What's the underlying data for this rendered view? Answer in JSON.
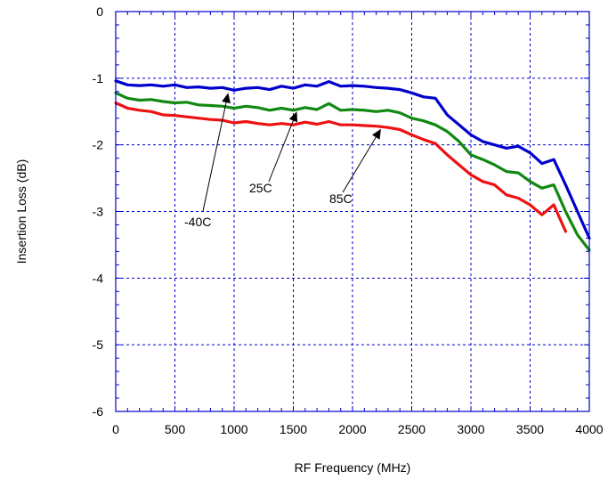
{
  "chart_data": {
    "type": "line",
    "xlabel": "RF Frequency (MHz)",
    "ylabel": "Insertion Loss (dB)",
    "xlim": [
      0,
      4000
    ],
    "ylim": [
      -6,
      0
    ],
    "xticks": [
      "0",
      "500",
      "1000",
      "1500",
      "2000",
      "2500",
      "3000",
      "3500",
      "4000"
    ],
    "yticks": [
      "0",
      "-1",
      "-2",
      "-3",
      "-4",
      "-5",
      "-6"
    ],
    "grid": true,
    "series": [
      {
        "name": "-40C",
        "color": "#0000cc",
        "points": [
          [
            0,
            -1.04
          ],
          [
            100,
            -1.1
          ],
          [
            200,
            -1.11
          ],
          [
            300,
            -1.1
          ],
          [
            400,
            -1.12
          ],
          [
            500,
            -1.1
          ],
          [
            600,
            -1.14
          ],
          [
            700,
            -1.13
          ],
          [
            800,
            -1.15
          ],
          [
            900,
            -1.14
          ],
          [
            1000,
            -1.18
          ],
          [
            1100,
            -1.15
          ],
          [
            1200,
            -1.14
          ],
          [
            1300,
            -1.17
          ],
          [
            1400,
            -1.12
          ],
          [
            1500,
            -1.15
          ],
          [
            1600,
            -1.1
          ],
          [
            1700,
            -1.12
          ],
          [
            1800,
            -1.05
          ],
          [
            1900,
            -1.12
          ],
          [
            2000,
            -1.11
          ],
          [
            2100,
            -1.12
          ],
          [
            2200,
            -1.14
          ],
          [
            2300,
            -1.15
          ],
          [
            2400,
            -1.17
          ],
          [
            2500,
            -1.22
          ],
          [
            2600,
            -1.28
          ],
          [
            2700,
            -1.3
          ],
          [
            2800,
            -1.55
          ],
          [
            2900,
            -1.7
          ],
          [
            3000,
            -1.85
          ],
          [
            3100,
            -1.95
          ],
          [
            3200,
            -2.0
          ],
          [
            3300,
            -2.05
          ],
          [
            3400,
            -2.02
          ],
          [
            3500,
            -2.12
          ],
          [
            3600,
            -2.28
          ],
          [
            3700,
            -2.22
          ],
          [
            3800,
            -2.6
          ],
          [
            3900,
            -3.0
          ],
          [
            4000,
            -3.4
          ]
        ]
      },
      {
        "name": "25C",
        "color": "#118811",
        "points": [
          [
            0,
            -1.22
          ],
          [
            100,
            -1.3
          ],
          [
            200,
            -1.33
          ],
          [
            300,
            -1.32
          ],
          [
            400,
            -1.35
          ],
          [
            500,
            -1.37
          ],
          [
            600,
            -1.36
          ],
          [
            700,
            -1.4
          ],
          [
            800,
            -1.41
          ],
          [
            900,
            -1.42
          ],
          [
            1000,
            -1.45
          ],
          [
            1100,
            -1.42
          ],
          [
            1200,
            -1.44
          ],
          [
            1300,
            -1.48
          ],
          [
            1400,
            -1.45
          ],
          [
            1500,
            -1.48
          ],
          [
            1600,
            -1.44
          ],
          [
            1700,
            -1.47
          ],
          [
            1800,
            -1.38
          ],
          [
            1900,
            -1.48
          ],
          [
            2000,
            -1.47
          ],
          [
            2100,
            -1.48
          ],
          [
            2200,
            -1.5
          ],
          [
            2300,
            -1.48
          ],
          [
            2400,
            -1.52
          ],
          [
            2500,
            -1.6
          ],
          [
            2600,
            -1.64
          ],
          [
            2700,
            -1.7
          ],
          [
            2800,
            -1.8
          ],
          [
            2900,
            -1.95
          ],
          [
            3000,
            -2.15
          ],
          [
            3100,
            -2.22
          ],
          [
            3200,
            -2.3
          ],
          [
            3300,
            -2.4
          ],
          [
            3400,
            -2.42
          ],
          [
            3500,
            -2.55
          ],
          [
            3600,
            -2.65
          ],
          [
            3700,
            -2.6
          ],
          [
            3800,
            -3.0
          ],
          [
            3900,
            -3.35
          ],
          [
            4000,
            -3.58
          ]
        ]
      },
      {
        "name": "85C",
        "color": "#ee1111",
        "points": [
          [
            0,
            -1.37
          ],
          [
            100,
            -1.45
          ],
          [
            200,
            -1.48
          ],
          [
            300,
            -1.5
          ],
          [
            400,
            -1.55
          ],
          [
            500,
            -1.56
          ],
          [
            600,
            -1.58
          ],
          [
            700,
            -1.6
          ],
          [
            800,
            -1.62
          ],
          [
            900,
            -1.63
          ],
          [
            1000,
            -1.67
          ],
          [
            1100,
            -1.65
          ],
          [
            1200,
            -1.68
          ],
          [
            1300,
            -1.7
          ],
          [
            1400,
            -1.68
          ],
          [
            1500,
            -1.7
          ],
          [
            1600,
            -1.66
          ],
          [
            1700,
            -1.69
          ],
          [
            1800,
            -1.65
          ],
          [
            1900,
            -1.7
          ],
          [
            2000,
            -1.7
          ],
          [
            2100,
            -1.71
          ],
          [
            2200,
            -1.72
          ],
          [
            2300,
            -1.74
          ],
          [
            2400,
            -1.77
          ],
          [
            2500,
            -1.85
          ],
          [
            2600,
            -1.92
          ],
          [
            2700,
            -1.98
          ],
          [
            2800,
            -2.15
          ],
          [
            2900,
            -2.3
          ],
          [
            3000,
            -2.45
          ],
          [
            3100,
            -2.55
          ],
          [
            3200,
            -2.6
          ],
          [
            3300,
            -2.75
          ],
          [
            3400,
            -2.8
          ],
          [
            3500,
            -2.9
          ],
          [
            3600,
            -3.05
          ],
          [
            3700,
            -2.9
          ],
          [
            3800,
            -3.3
          ]
        ]
      }
    ],
    "annotations": [
      {
        "text": "-40C",
        "series": "-40C",
        "arrow_to": [
          950,
          -1.18
        ]
      },
      {
        "text": "25C",
        "series": "25C",
        "arrow_to": [
          1530,
          -1.46
        ]
      },
      {
        "text": "85C",
        "series": "85C",
        "arrow_to": [
          2240,
          -1.72
        ]
      }
    ]
  }
}
